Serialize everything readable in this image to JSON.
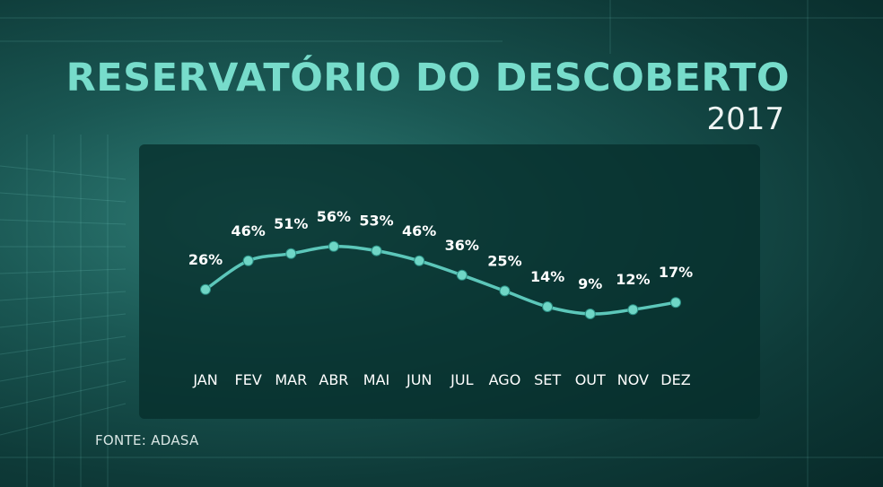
{
  "header": {
    "title": "RESERVATÓRIO DO DESCOBERTO",
    "year": "2017"
  },
  "footer": {
    "source": "FONTE: ADASA"
  },
  "colors": {
    "title": "#77dccb",
    "line": "#5cc7ba",
    "marker": "#6fd6c6",
    "panel": "#0a3634",
    "label": "#ffffff",
    "axis_label": "#ffffff"
  },
  "chart_data": {
    "type": "line",
    "title": "RESERVATÓRIO DO DESCOBERTO",
    "subtitle": "2017",
    "categories": [
      "JAN",
      "FEV",
      "MAR",
      "ABR",
      "MAI",
      "JUN",
      "JUL",
      "AGO",
      "SET",
      "OUT",
      "NOV",
      "DEZ"
    ],
    "values": [
      26,
      46,
      51,
      56,
      53,
      46,
      36,
      25,
      14,
      9,
      12,
      17
    ],
    "value_labels": [
      "26%",
      "46%",
      "51%",
      "56%",
      "53%",
      "46%",
      "36%",
      "25%",
      "14%",
      "9%",
      "12%",
      "17%"
    ],
    "unit": "%",
    "grid": false,
    "legend": false
  }
}
